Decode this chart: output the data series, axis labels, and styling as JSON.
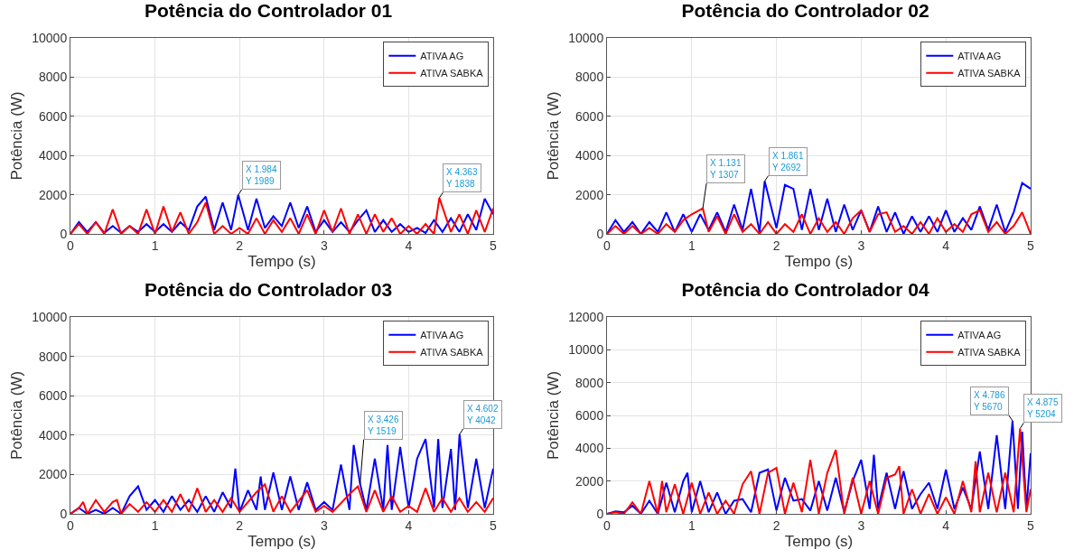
{
  "chart_data": [
    {
      "type": "line",
      "title": "Potência do Controlador 01",
      "xlabel": "Tempo (s)",
      "ylabel": "Potência (W)",
      "xlim": [
        0,
        5
      ],
      "xticks": [
        0,
        1,
        2,
        3,
        4,
        5
      ],
      "ylim": [
        0,
        10000
      ],
      "yticks": [
        0,
        2000,
        4000,
        6000,
        8000,
        10000
      ],
      "grid": true,
      "legend": "top right",
      "line_style": "solid",
      "marker": "none",
      "series": [
        {
          "name": "ATIVA AG",
          "color": "#0000ff",
          "x": [
            0,
            0.1,
            0.2,
            0.3,
            0.4,
            0.5,
            0.6,
            0.7,
            0.8,
            0.9,
            1.0,
            1.1,
            1.2,
            1.3,
            1.4,
            1.5,
            1.6,
            1.7,
            1.8,
            1.9,
            1.984,
            2.1,
            2.2,
            2.3,
            2.4,
            2.5,
            2.6,
            2.7,
            2.8,
            2.9,
            3.0,
            3.1,
            3.2,
            3.3,
            3.4,
            3.5,
            3.6,
            3.7,
            3.8,
            3.9,
            4.0,
            4.1,
            4.2,
            4.3,
            4.4,
            4.5,
            4.6,
            4.7,
            4.8,
            4.9,
            5.0
          ],
          "values": [
            0,
            600,
            100,
            600,
            50,
            400,
            50,
            400,
            100,
            500,
            100,
            500,
            100,
            600,
            200,
            1400,
            1900,
            200,
            1600,
            200,
            1989,
            200,
            1800,
            300,
            900,
            400,
            1600,
            300,
            1400,
            100,
            700,
            100,
            600,
            100,
            700,
            1200,
            100,
            700,
            100,
            500,
            100,
            300,
            50,
            700,
            100,
            800,
            100,
            1000,
            200,
            1800,
            1000
          ]
        },
        {
          "name": "ATIVA SABKA",
          "color": "#ff0000",
          "x": [
            0,
            0.1,
            0.2,
            0.3,
            0.4,
            0.5,
            0.6,
            0.7,
            0.8,
            0.9,
            1.0,
            1.1,
            1.2,
            1.3,
            1.4,
            1.5,
            1.6,
            1.7,
            1.8,
            1.9,
            2.0,
            2.1,
            2.2,
            2.3,
            2.4,
            2.5,
            2.6,
            2.7,
            2.8,
            2.9,
            3.0,
            3.1,
            3.2,
            3.3,
            3.4,
            3.5,
            3.6,
            3.7,
            3.8,
            3.9,
            4.0,
            4.1,
            4.2,
            4.3,
            4.363,
            4.5,
            4.6,
            4.7,
            4.8,
            4.9,
            5.0
          ],
          "values": [
            0,
            500,
            0,
            600,
            0,
            1250,
            0,
            400,
            0,
            1250,
            0,
            1400,
            100,
            1100,
            0,
            600,
            1600,
            0,
            400,
            0,
            300,
            0,
            800,
            0,
            700,
            100,
            800,
            0,
            1000,
            0,
            1200,
            100,
            1300,
            0,
            1000,
            0,
            1000,
            100,
            800,
            0,
            400,
            0,
            500,
            0,
            1838,
            100,
            1000,
            0,
            1200,
            100,
            1300
          ]
        }
      ],
      "annotations": [
        {
          "text": "X 1.984\nY 1989",
          "x": 1.984,
          "y": 1989
        },
        {
          "text": "X 4.363\nY 1838",
          "x": 4.363,
          "y": 1838
        }
      ]
    },
    {
      "type": "line",
      "title": "Potência do Controlador 02",
      "xlabel": "Tempo (s)",
      "ylabel": "Potência (W)",
      "xlim": [
        0,
        5
      ],
      "xticks": [
        0,
        1,
        2,
        3,
        4,
        5
      ],
      "ylim": [
        0,
        10000
      ],
      "yticks": [
        0,
        2000,
        4000,
        6000,
        8000,
        10000
      ],
      "grid": true,
      "legend": "top right",
      "line_style": "solid",
      "marker": "none",
      "series": [
        {
          "name": "ATIVA AG",
          "color": "#0000ff",
          "x": [
            0,
            0.1,
            0.2,
            0.3,
            0.4,
            0.5,
            0.6,
            0.7,
            0.8,
            0.9,
            1.0,
            1.1,
            1.2,
            1.3,
            1.4,
            1.5,
            1.6,
            1.7,
            1.8,
            1.861,
            2.0,
            2.1,
            2.2,
            2.3,
            2.4,
            2.5,
            2.6,
            2.7,
            2.8,
            2.9,
            3.0,
            3.1,
            3.2,
            3.3,
            3.4,
            3.5,
            3.6,
            3.7,
            3.8,
            3.9,
            4.0,
            4.1,
            4.2,
            4.3,
            4.4,
            4.5,
            4.6,
            4.7,
            4.8,
            4.9,
            5.0
          ],
          "values": [
            0,
            700,
            100,
            600,
            0,
            600,
            100,
            1100,
            100,
            1000,
            100,
            1000,
            200,
            1100,
            100,
            1500,
            200,
            2300,
            100,
            2692,
            300,
            2500,
            2300,
            200,
            2300,
            200,
            1800,
            100,
            1500,
            200,
            1200,
            100,
            1400,
            100,
            1100,
            0,
            900,
            100,
            900,
            100,
            1200,
            100,
            800,
            200,
            1400,
            200,
            1500,
            100,
            1100,
            2600,
            2300
          ]
        },
        {
          "name": "ATIVA SABKA",
          "color": "#ff0000",
          "x": [
            0,
            0.1,
            0.2,
            0.3,
            0.4,
            0.5,
            0.6,
            0.7,
            0.8,
            0.9,
            1.0,
            1.131,
            1.2,
            1.3,
            1.4,
            1.5,
            1.6,
            1.7,
            1.8,
            1.9,
            2.0,
            2.1,
            2.2,
            2.3,
            2.4,
            2.5,
            2.6,
            2.7,
            2.8,
            2.9,
            3.0,
            3.1,
            3.2,
            3.3,
            3.4,
            3.5,
            3.6,
            3.7,
            3.8,
            3.9,
            4.0,
            4.1,
            4.2,
            4.3,
            4.4,
            4.5,
            4.6,
            4.7,
            4.8,
            4.9,
            5.0
          ],
          "values": [
            0,
            400,
            0,
            400,
            0,
            300,
            0,
            500,
            100,
            700,
            1000,
            1307,
            100,
            900,
            0,
            1000,
            100,
            500,
            0,
            600,
            0,
            500,
            100,
            1000,
            0,
            800,
            100,
            600,
            0,
            800,
            1200,
            100,
            1000,
            1100,
            100,
            400,
            0,
            600,
            0,
            800,
            100,
            500,
            100,
            1000,
            1200,
            100,
            600,
            0,
            400,
            1100,
            0
          ]
        }
      ],
      "annotations": [
        {
          "text": "X 1.131\nY 1307",
          "x": 1.131,
          "y": 1307
        },
        {
          "text": "X 1.861\nY 2692",
          "x": 1.861,
          "y": 2692
        }
      ]
    },
    {
      "type": "line",
      "title": "Potência do Controlador 03",
      "xlabel": "Tempo (s)",
      "ylabel": "Potência (W)",
      "xlim": [
        0,
        5
      ],
      "xticks": [
        0,
        1,
        2,
        3,
        4,
        5
      ],
      "ylim": [
        0,
        10000
      ],
      "yticks": [
        0,
        2000,
        4000,
        6000,
        8000,
        10000
      ],
      "grid": true,
      "legend": "top right",
      "line_style": "solid",
      "marker": "none",
      "series": [
        {
          "name": "ATIVA AG",
          "color": "#0000ff",
          "x": [
            0,
            0.1,
            0.2,
            0.3,
            0.4,
            0.5,
            0.6,
            0.7,
            0.8,
            0.9,
            1.0,
            1.1,
            1.2,
            1.3,
            1.4,
            1.5,
            1.6,
            1.7,
            1.8,
            1.9,
            1.95,
            2.0,
            2.1,
            2.2,
            2.25,
            2.3,
            2.4,
            2.5,
            2.6,
            2.7,
            2.8,
            2.9,
            3.0,
            3.1,
            3.2,
            3.3,
            3.35,
            3.426,
            3.5,
            3.6,
            3.7,
            3.75,
            3.8,
            3.9,
            4.0,
            4.1,
            4.2,
            4.3,
            4.35,
            4.4,
            4.5,
            4.55,
            4.602,
            4.7,
            4.8,
            4.9,
            5.0
          ],
          "values": [
            0,
            300,
            0,
            200,
            0,
            300,
            0,
            900,
            1400,
            200,
            700,
            100,
            900,
            200,
            700,
            100,
            900,
            100,
            1100,
            300,
            2300,
            100,
            1200,
            200,
            1900,
            200,
            2100,
            200,
            1900,
            200,
            1600,
            200,
            600,
            200,
            2500,
            200,
            3500,
            1519,
            200,
            2800,
            200,
            3500,
            200,
            3400,
            300,
            2800,
            3800,
            300,
            3800,
            300,
            3300,
            200,
            4042,
            300,
            2800,
            300,
            2300
          ]
        },
        {
          "name": "ATIVA SABKA",
          "color": "#ff0000",
          "x": [
            0,
            0.1,
            0.15,
            0.2,
            0.3,
            0.4,
            0.5,
            0.55,
            0.6,
            0.7,
            0.8,
            0.9,
            1.0,
            1.1,
            1.2,
            1.3,
            1.4,
            1.5,
            1.6,
            1.7,
            1.8,
            1.9,
            2.0,
            2.2,
            2.3,
            2.4,
            2.5,
            2.6,
            2.8,
            2.9,
            3.0,
            3.1,
            3.3,
            3.4,
            3.5,
            3.6,
            3.7,
            3.8,
            3.9,
            4.0,
            4.1,
            4.2,
            4.3,
            4.4,
            4.5,
            4.6,
            4.7,
            4.8,
            4.9,
            5.0
          ],
          "values": [
            0,
            300,
            600,
            0,
            700,
            100,
            600,
            700,
            0,
            500,
            100,
            600,
            100,
            700,
            100,
            1000,
            100,
            1300,
            100,
            700,
            100,
            800,
            100,
            1100,
            1500,
            100,
            900,
            100,
            1200,
            100,
            400,
            100,
            1000,
            1400,
            100,
            1200,
            100,
            900,
            100,
            400,
            100,
            1300,
            100,
            800,
            100,
            800,
            100,
            600,
            100,
            800
          ]
        }
      ],
      "annotations": [
        {
          "text": "X 3.426\nY 1519",
          "x": 3.426,
          "y": 1519
        },
        {
          "text": "X 4.602\nY 4042",
          "x": 4.602,
          "y": 4042
        }
      ]
    },
    {
      "type": "line",
      "title": "Potência do Controlador 04",
      "xlabel": "Tempo (s)",
      "ylabel": "Potência (W)",
      "xlim": [
        0,
        5
      ],
      "xticks": [
        0,
        1,
        2,
        3,
        4,
        5
      ],
      "ylim": [
        0,
        12000
      ],
      "yticks": [
        0,
        2000,
        4000,
        6000,
        8000,
        10000,
        12000
      ],
      "grid": true,
      "legend": "top right",
      "line_style": "solid",
      "marker": "none",
      "series": [
        {
          "name": "ATIVA AG",
          "color": "#0000ff",
          "x": [
            0,
            0.1,
            0.2,
            0.3,
            0.4,
            0.5,
            0.6,
            0.7,
            0.8,
            0.9,
            0.95,
            1.0,
            1.1,
            1.2,
            1.3,
            1.4,
            1.5,
            1.6,
            1.7,
            1.8,
            1.9,
            2.0,
            2.1,
            2.2,
            2.3,
            2.4,
            2.5,
            2.6,
            2.7,
            2.8,
            2.9,
            3.0,
            3.1,
            3.15,
            3.2,
            3.3,
            3.4,
            3.5,
            3.6,
            3.7,
            3.8,
            3.9,
            4.0,
            4.1,
            4.2,
            4.3,
            4.4,
            4.5,
            4.6,
            4.7,
            4.786,
            4.85,
            4.9,
            4.95,
            5.0
          ],
          "values": [
            0,
            150,
            100,
            500,
            0,
            800,
            0,
            1900,
            100,
            2000,
            2500,
            100,
            2000,
            100,
            1300,
            0,
            800,
            900,
            100,
            2500,
            2700,
            200,
            2200,
            800,
            900,
            200,
            2000,
            200,
            2200,
            100,
            2000,
            3300,
            300,
            3600,
            300,
            2500,
            300,
            2600,
            300,
            1200,
            1900,
            300,
            2700,
            300,
            1600,
            300,
            3800,
            300,
            4800,
            300,
            5670,
            300,
            5000,
            300,
            3700
          ]
        },
        {
          "name": "ATIVA SABKA",
          "color": "#ff0000",
          "x": [
            0,
            0.1,
            0.2,
            0.3,
            0.4,
            0.5,
            0.6,
            0.65,
            0.7,
            0.8,
            0.9,
            1.0,
            1.1,
            1.2,
            1.3,
            1.4,
            1.5,
            1.6,
            1.7,
            1.8,
            1.9,
            2.0,
            2.1,
            2.2,
            2.3,
            2.4,
            2.5,
            2.6,
            2.7,
            2.8,
            2.9,
            3.0,
            3.1,
            3.2,
            3.3,
            3.4,
            3.45,
            3.5,
            3.6,
            3.7,
            3.8,
            3.9,
            4.0,
            4.1,
            4.2,
            4.3,
            4.35,
            4.4,
            4.5,
            4.6,
            4.7,
            4.8,
            4.875,
            4.95,
            5.0
          ],
          "values": [
            0,
            100,
            0,
            700,
            0,
            2000,
            0,
            2000,
            100,
            1800,
            0,
            1900,
            0,
            1300,
            0,
            800,
            0,
            1800,
            2600,
            0,
            2500,
            2800,
            0,
            1900,
            100,
            3300,
            0,
            2500,
            3900,
            0,
            2200,
            0,
            2000,
            0,
            2200,
            2400,
            2900,
            0,
            1500,
            0,
            1200,
            0,
            1000,
            0,
            2000,
            100,
            3200,
            100,
            2500,
            100,
            2500,
            100,
            5204,
            100,
            1500
          ]
        }
      ],
      "annotations": [
        {
          "text": "X 4.786\nY 5670",
          "x": 4.786,
          "y": 5670
        },
        {
          "text": "X 4.875\nY 5204",
          "x": 4.875,
          "y": 5204
        }
      ]
    }
  ]
}
